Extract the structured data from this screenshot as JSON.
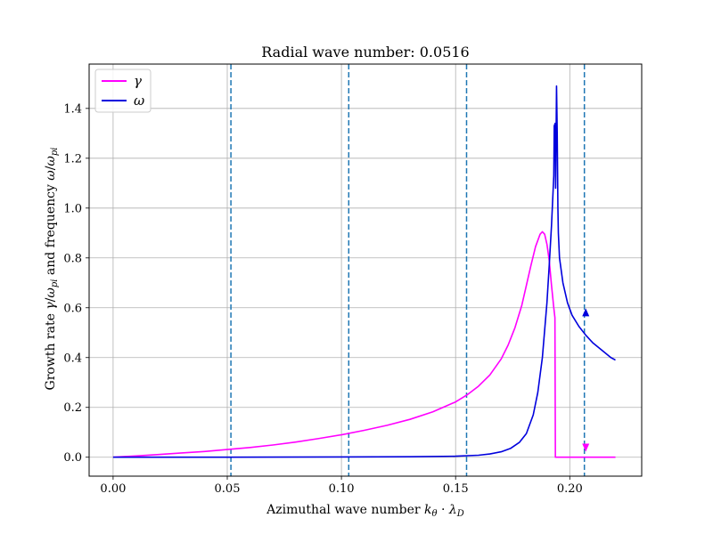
{
  "chart_data": {
    "type": "line",
    "title": "Radial wave number: 0.0516",
    "xlabel": "Azimuthal wave number kθ · λD",
    "ylabel": "Growth rate γ/ωpi and frequency ω/ωpi",
    "xlim": [
      -0.0105,
      0.2315
    ],
    "ylim": [
      -0.076,
      1.578
    ],
    "grid": true,
    "legend_position": "top-left",
    "xticks": [
      0.0,
      0.05,
      0.1,
      0.15,
      0.2
    ],
    "xtick_labels": [
      "0.00",
      "0.05",
      "0.10",
      "0.15",
      "0.20"
    ],
    "yticks": [
      0.0,
      0.2,
      0.4,
      0.6,
      0.8,
      1.0,
      1.2,
      1.4
    ],
    "ytick_labels": [
      "0.0",
      "0.2",
      "0.4",
      "0.6",
      "0.8",
      "1.0",
      "1.2",
      "1.4"
    ],
    "vlines": [
      0.0516,
      0.1032,
      0.1548,
      0.2064
    ],
    "vline_color": "#1f77b4",
    "series": [
      {
        "name": "γ",
        "color": "#ff00ff",
        "x": [
          0.0,
          0.01,
          0.02,
          0.03,
          0.04,
          0.05,
          0.06,
          0.07,
          0.08,
          0.09,
          0.1,
          0.11,
          0.12,
          0.13,
          0.14,
          0.15,
          0.155,
          0.16,
          0.165,
          0.17,
          0.173,
          0.176,
          0.179,
          0.181,
          0.183,
          0.185,
          0.187,
          0.188,
          0.189,
          0.19,
          0.191,
          0.192,
          0.193,
          0.1935,
          0.1937,
          0.194,
          0.2,
          0.21,
          0.22
        ],
        "y": [
          0.0,
          0.005,
          0.011,
          0.017,
          0.023,
          0.031,
          0.039,
          0.049,
          0.061,
          0.075,
          0.09,
          0.108,
          0.128,
          0.152,
          0.182,
          0.222,
          0.25,
          0.285,
          0.33,
          0.395,
          0.45,
          0.52,
          0.61,
          0.69,
          0.77,
          0.845,
          0.895,
          0.905,
          0.895,
          0.855,
          0.79,
          0.69,
          0.6,
          0.56,
          0.0,
          0.0,
          0.0,
          0.0,
          0.0
        ],
        "arrow": {
          "x": 0.207,
          "y": 0.04,
          "direction": "down"
        }
      },
      {
        "name": "ω",
        "color": "#0000dd",
        "x": [
          0.0,
          0.05,
          0.1,
          0.13,
          0.15,
          0.16,
          0.165,
          0.17,
          0.174,
          0.178,
          0.181,
          0.184,
          0.186,
          0.188,
          0.19,
          0.191,
          0.192,
          0.193,
          0.1932,
          0.1936,
          0.1938,
          0.1942,
          0.1945,
          0.1948,
          0.195,
          0.1955,
          0.197,
          0.199,
          0.201,
          0.204,
          0.207,
          0.21,
          0.214,
          0.218,
          0.22
        ],
        "y": [
          0.0,
          0.0,
          0.001,
          0.002,
          0.004,
          0.008,
          0.013,
          0.022,
          0.035,
          0.06,
          0.095,
          0.17,
          0.26,
          0.4,
          0.62,
          0.77,
          0.93,
          1.13,
          1.33,
          1.34,
          1.08,
          1.49,
          1.3,
          1.0,
          0.9,
          0.8,
          0.7,
          0.62,
          0.57,
          0.525,
          0.49,
          0.46,
          0.43,
          0.4,
          0.39
        ],
        "arrow": {
          "x": 0.207,
          "y": 0.58,
          "direction": "up"
        }
      }
    ]
  }
}
